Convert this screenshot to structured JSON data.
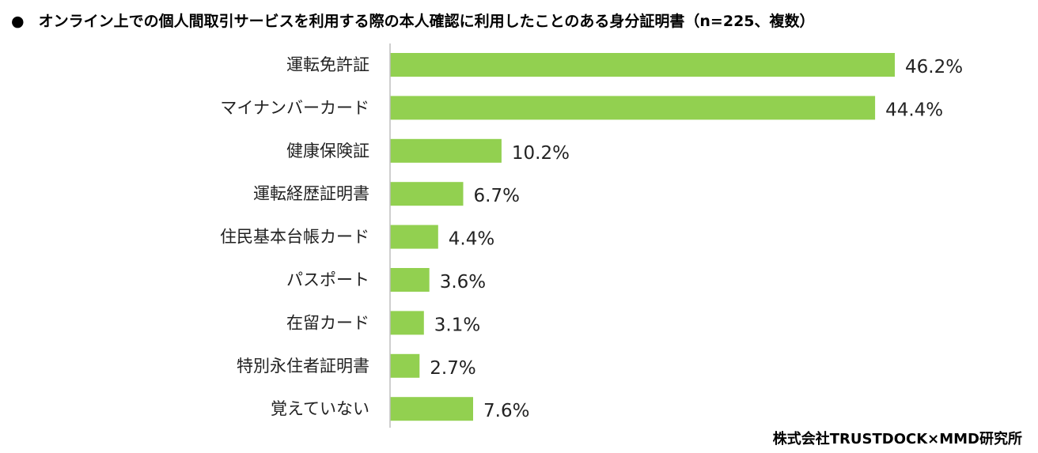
{
  "title": {
    "bullet": "●",
    "text": "オンライン上での個人間取引サービスを利用する際の本人確認に利用したことのある身分証明書（n=225、複数）"
  },
  "source": "株式会社TRUSTDOCK×MMD研究所",
  "colors": {
    "bar": "#92d050",
    "axis": "#bfbfbf",
    "text": "#222222"
  },
  "chart_data": {
    "type": "bar",
    "orientation": "horizontal",
    "categories": [
      "運転免許証",
      "マイナンバーカード",
      "健康保険証",
      "運転経歴証明書",
      "住民基本台帳カード",
      "パスポート",
      "在留カード",
      "特別永住者証明書",
      "覚えていない"
    ],
    "values": [
      46.2,
      44.4,
      10.2,
      6.7,
      4.4,
      3.6,
      3.1,
      2.7,
      7.6
    ],
    "value_labels": [
      "46.2%",
      "44.4%",
      "10.2%",
      "6.7%",
      "4.4%",
      "3.6%",
      "3.1%",
      "2.7%",
      "7.6%"
    ],
    "unit": "%",
    "xlim": [
      0,
      50
    ],
    "grid": false,
    "legend": "none"
  }
}
